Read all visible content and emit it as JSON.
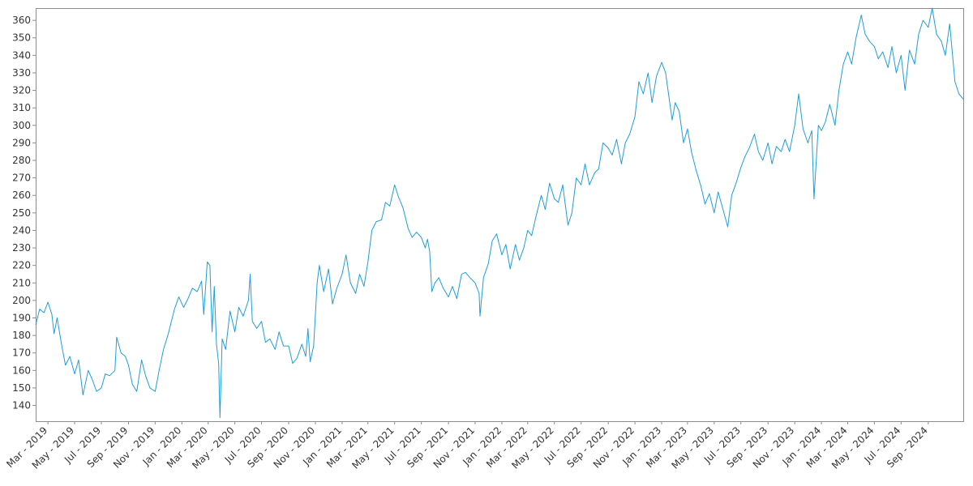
{
  "chart_data": {
    "type": "line",
    "title": "",
    "xlabel": "",
    "ylabel": "",
    "ylim": [
      131,
      367
    ],
    "xlim": [
      "2019-02-01",
      "2024-11-20"
    ],
    "grid": false,
    "legend": "none",
    "y_ticks": [
      140,
      150,
      160,
      170,
      180,
      190,
      200,
      210,
      220,
      230,
      240,
      250,
      260,
      270,
      280,
      290,
      300,
      310,
      320,
      330,
      340,
      350,
      360
    ],
    "x_ticks": [
      {
        "date": "2019-03-01",
        "label": "Mar - 2019"
      },
      {
        "date": "2019-05-01",
        "label": "May - 2019"
      },
      {
        "date": "2019-07-01",
        "label": "Jul - 2019"
      },
      {
        "date": "2019-09-01",
        "label": "Sep - 2019"
      },
      {
        "date": "2019-11-01",
        "label": "Nov - 2019"
      },
      {
        "date": "2020-01-01",
        "label": "Jan - 2020"
      },
      {
        "date": "2020-03-01",
        "label": "Mar - 2020"
      },
      {
        "date": "2020-05-01",
        "label": "May - 2020"
      },
      {
        "date": "2020-07-01",
        "label": "Jul - 2020"
      },
      {
        "date": "2020-09-01",
        "label": "Sep - 2020"
      },
      {
        "date": "2020-11-01",
        "label": "Nov - 2020"
      },
      {
        "date": "2021-01-01",
        "label": "Jan - 2021"
      },
      {
        "date": "2021-03-01",
        "label": "Mar - 2021"
      },
      {
        "date": "2021-05-01",
        "label": "May - 2021"
      },
      {
        "date": "2021-07-01",
        "label": "Jul - 2021"
      },
      {
        "date": "2021-09-01",
        "label": "Sep - 2021"
      },
      {
        "date": "2021-11-01",
        "label": "Nov - 2021"
      },
      {
        "date": "2022-01-01",
        "label": "Jan - 2022"
      },
      {
        "date": "2022-03-01",
        "label": "Mar - 2022"
      },
      {
        "date": "2022-05-01",
        "label": "May - 2022"
      },
      {
        "date": "2022-07-01",
        "label": "Jul - 2022"
      },
      {
        "date": "2022-09-01",
        "label": "Sep - 2022"
      },
      {
        "date": "2022-11-01",
        "label": "Nov - 2022"
      },
      {
        "date": "2023-01-01",
        "label": "Jan - 2023"
      },
      {
        "date": "2023-03-01",
        "label": "Mar - 2023"
      },
      {
        "date": "2023-05-01",
        "label": "May - 2023"
      },
      {
        "date": "2023-07-01",
        "label": "Jul - 2023"
      },
      {
        "date": "2023-09-01",
        "label": "Sep - 2023"
      },
      {
        "date": "2023-11-01",
        "label": "Nov - 2023"
      },
      {
        "date": "2024-01-01",
        "label": "Jan - 2024"
      },
      {
        "date": "2024-03-01",
        "label": "Mar - 2024"
      },
      {
        "date": "2024-05-01",
        "label": "May - 2024"
      },
      {
        "date": "2024-07-01",
        "label": "Jul - 2024"
      },
      {
        "date": "2024-09-01",
        "label": "Sep - 2024"
      }
    ],
    "series": [
      {
        "color": "#1f9ed8",
        "points": [
          [
            "2019-02-01",
            186
          ],
          [
            "2019-02-10",
            195
          ],
          [
            "2019-02-20",
            193
          ],
          [
            "2019-03-01",
            199
          ],
          [
            "2019-03-10",
            192
          ],
          [
            "2019-03-15",
            181
          ],
          [
            "2019-03-22",
            190
          ],
          [
            "2019-04-01",
            175
          ],
          [
            "2019-04-10",
            163
          ],
          [
            "2019-04-20",
            168
          ],
          [
            "2019-05-01",
            158
          ],
          [
            "2019-05-10",
            166
          ],
          [
            "2019-05-20",
            146
          ],
          [
            "2019-06-01",
            160
          ],
          [
            "2019-06-10",
            155
          ],
          [
            "2019-06-20",
            148
          ],
          [
            "2019-07-01",
            150
          ],
          [
            "2019-07-10",
            158
          ],
          [
            "2019-07-20",
            157
          ],
          [
            "2019-08-01",
            160
          ],
          [
            "2019-08-05",
            179
          ],
          [
            "2019-08-15",
            170
          ],
          [
            "2019-08-25",
            168
          ],
          [
            "2019-09-01",
            163
          ],
          [
            "2019-09-10",
            152
          ],
          [
            "2019-09-20",
            148
          ],
          [
            "2019-10-01",
            166
          ],
          [
            "2019-10-10",
            157
          ],
          [
            "2019-10-20",
            150
          ],
          [
            "2019-11-01",
            148
          ],
          [
            "2019-11-10",
            160
          ],
          [
            "2019-11-20",
            172
          ],
          [
            "2019-12-01",
            181
          ],
          [
            "2019-12-15",
            195
          ],
          [
            "2019-12-25",
            202
          ],
          [
            "2020-01-05",
            196
          ],
          [
            "2020-01-15",
            201
          ],
          [
            "2020-01-25",
            207
          ],
          [
            "2020-02-05",
            205
          ],
          [
            "2020-02-15",
            211
          ],
          [
            "2020-02-20",
            192
          ],
          [
            "2020-02-28",
            222
          ],
          [
            "2020-03-05",
            220
          ],
          [
            "2020-03-10",
            182
          ],
          [
            "2020-03-15",
            208
          ],
          [
            "2020-03-20",
            175
          ],
          [
            "2020-03-25",
            164
          ],
          [
            "2020-03-28",
            133
          ],
          [
            "2020-04-02",
            178
          ],
          [
            "2020-04-10",
            172
          ],
          [
            "2020-04-20",
            194
          ],
          [
            "2020-05-01",
            182
          ],
          [
            "2020-05-10",
            196
          ],
          [
            "2020-05-20",
            191
          ],
          [
            "2020-06-01",
            200
          ],
          [
            "2020-06-05",
            215
          ],
          [
            "2020-06-10",
            188
          ],
          [
            "2020-06-20",
            184
          ],
          [
            "2020-07-01",
            188
          ],
          [
            "2020-07-10",
            176
          ],
          [
            "2020-07-20",
            178
          ],
          [
            "2020-08-01",
            172
          ],
          [
            "2020-08-10",
            182
          ],
          [
            "2020-08-20",
            174
          ],
          [
            "2020-09-01",
            174
          ],
          [
            "2020-09-10",
            164
          ],
          [
            "2020-09-20",
            167
          ],
          [
            "2020-10-01",
            175
          ],
          [
            "2020-10-10",
            168
          ],
          [
            "2020-10-15",
            184
          ],
          [
            "2020-10-20",
            165
          ],
          [
            "2020-10-28",
            174
          ],
          [
            "2020-11-05",
            210
          ],
          [
            "2020-11-10",
            220
          ],
          [
            "2020-11-20",
            205
          ],
          [
            "2020-12-01",
            218
          ],
          [
            "2020-12-10",
            198
          ],
          [
            "2020-12-20",
            207
          ],
          [
            "2021-01-01",
            215
          ],
          [
            "2021-01-10",
            226
          ],
          [
            "2021-01-20",
            210
          ],
          [
            "2021-02-01",
            204
          ],
          [
            "2021-02-10",
            215
          ],
          [
            "2021-02-20",
            208
          ],
          [
            "2021-03-01",
            222
          ],
          [
            "2021-03-10",
            240
          ],
          [
            "2021-03-20",
            245
          ],
          [
            "2021-04-01",
            246
          ],
          [
            "2021-04-10",
            256
          ],
          [
            "2021-04-20",
            254
          ],
          [
            "2021-05-01",
            266
          ],
          [
            "2021-05-10",
            259
          ],
          [
            "2021-05-20",
            253
          ],
          [
            "2021-06-01",
            241
          ],
          [
            "2021-06-10",
            236
          ],
          [
            "2021-06-20",
            239
          ],
          [
            "2021-07-01",
            236
          ],
          [
            "2021-07-10",
            230
          ],
          [
            "2021-07-15",
            235
          ],
          [
            "2021-07-20",
            228
          ],
          [
            "2021-07-25",
            205
          ],
          [
            "2021-08-01",
            210
          ],
          [
            "2021-08-10",
            213
          ],
          [
            "2021-08-20",
            207
          ],
          [
            "2021-09-01",
            202
          ],
          [
            "2021-09-10",
            208
          ],
          [
            "2021-09-20",
            201
          ],
          [
            "2021-10-01",
            215
          ],
          [
            "2021-10-10",
            216
          ],
          [
            "2021-10-20",
            213
          ],
          [
            "2021-11-01",
            210
          ],
          [
            "2021-11-10",
            204
          ],
          [
            "2021-11-12",
            191
          ],
          [
            "2021-11-20",
            213
          ],
          [
            "2021-12-01",
            221
          ],
          [
            "2021-12-10",
            234
          ],
          [
            "2021-12-20",
            238
          ],
          [
            "2022-01-01",
            226
          ],
          [
            "2022-01-10",
            232
          ],
          [
            "2022-01-20",
            218
          ],
          [
            "2022-02-01",
            232
          ],
          [
            "2022-02-10",
            223
          ],
          [
            "2022-02-20",
            230
          ],
          [
            "2022-03-01",
            240
          ],
          [
            "2022-03-10",
            237
          ],
          [
            "2022-03-20",
            248
          ],
          [
            "2022-04-01",
            260
          ],
          [
            "2022-04-10",
            252
          ],
          [
            "2022-04-20",
            267
          ],
          [
            "2022-05-01",
            258
          ],
          [
            "2022-05-10",
            256
          ],
          [
            "2022-05-20",
            266
          ],
          [
            "2022-06-01",
            243
          ],
          [
            "2022-06-10",
            250
          ],
          [
            "2022-06-20",
            270
          ],
          [
            "2022-07-01",
            266
          ],
          [
            "2022-07-10",
            278
          ],
          [
            "2022-07-20",
            266
          ],
          [
            "2022-08-01",
            273
          ],
          [
            "2022-08-10",
            275
          ],
          [
            "2022-08-20",
            290
          ],
          [
            "2022-09-01",
            287
          ],
          [
            "2022-09-10",
            283
          ],
          [
            "2022-09-20",
            292
          ],
          [
            "2022-10-01",
            278
          ],
          [
            "2022-10-10",
            290
          ],
          [
            "2022-10-20",
            295
          ],
          [
            "2022-11-01",
            305
          ],
          [
            "2022-11-10",
            325
          ],
          [
            "2022-11-20",
            318
          ],
          [
            "2022-12-01",
            330
          ],
          [
            "2022-12-10",
            313
          ],
          [
            "2022-12-20",
            328
          ],
          [
            "2023-01-01",
            336
          ],
          [
            "2023-01-10",
            330
          ],
          [
            "2023-01-20",
            312
          ],
          [
            "2023-01-25",
            303
          ],
          [
            "2023-02-01",
            313
          ],
          [
            "2023-02-10",
            308
          ],
          [
            "2023-02-20",
            290
          ],
          [
            "2023-03-01",
            298
          ],
          [
            "2023-03-10",
            285
          ],
          [
            "2023-03-20",
            275
          ],
          [
            "2023-04-01",
            265
          ],
          [
            "2023-04-10",
            255
          ],
          [
            "2023-04-20",
            261
          ],
          [
            "2023-05-01",
            250
          ],
          [
            "2023-05-10",
            262
          ],
          [
            "2023-05-20",
            253
          ],
          [
            "2023-06-01",
            242
          ],
          [
            "2023-06-10",
            260
          ],
          [
            "2023-06-20",
            267
          ],
          [
            "2023-07-01",
            276
          ],
          [
            "2023-07-10",
            282
          ],
          [
            "2023-07-20",
            287
          ],
          [
            "2023-08-01",
            295
          ],
          [
            "2023-08-10",
            285
          ],
          [
            "2023-08-20",
            280
          ],
          [
            "2023-09-01",
            290
          ],
          [
            "2023-09-10",
            278
          ],
          [
            "2023-09-20",
            288
          ],
          [
            "2023-10-01",
            285
          ],
          [
            "2023-10-10",
            292
          ],
          [
            "2023-10-20",
            285
          ],
          [
            "2023-11-01",
            300
          ],
          [
            "2023-11-10",
            318
          ],
          [
            "2023-11-20",
            298
          ],
          [
            "2023-12-01",
            290
          ],
          [
            "2023-12-10",
            297
          ],
          [
            "2023-12-15",
            258
          ],
          [
            "2023-12-25",
            300
          ],
          [
            "2024-01-01",
            297
          ],
          [
            "2024-01-10",
            302
          ],
          [
            "2024-01-20",
            312
          ],
          [
            "2024-02-01",
            300
          ],
          [
            "2024-02-10",
            320
          ],
          [
            "2024-02-20",
            335
          ],
          [
            "2024-03-01",
            342
          ],
          [
            "2024-03-10",
            335
          ],
          [
            "2024-03-20",
            350
          ],
          [
            "2024-04-01",
            363
          ],
          [
            "2024-04-10",
            352
          ],
          [
            "2024-04-20",
            348
          ],
          [
            "2024-05-01",
            345
          ],
          [
            "2024-05-10",
            338
          ],
          [
            "2024-05-20",
            342
          ],
          [
            "2024-06-01",
            333
          ],
          [
            "2024-06-10",
            345
          ],
          [
            "2024-06-20",
            330
          ],
          [
            "2024-07-01",
            340
          ],
          [
            "2024-07-10",
            320
          ],
          [
            "2024-07-20",
            343
          ],
          [
            "2024-08-01",
            335
          ],
          [
            "2024-08-10",
            352
          ],
          [
            "2024-08-20",
            360
          ],
          [
            "2024-09-01",
            356
          ],
          [
            "2024-09-10",
            367
          ],
          [
            "2024-09-20",
            352
          ],
          [
            "2024-10-01",
            348
          ],
          [
            "2024-10-10",
            340
          ],
          [
            "2024-10-20",
            358
          ],
          [
            "2024-11-01",
            325
          ],
          [
            "2024-11-10",
            318
          ],
          [
            "2024-11-20",
            315
          ]
        ]
      }
    ]
  }
}
